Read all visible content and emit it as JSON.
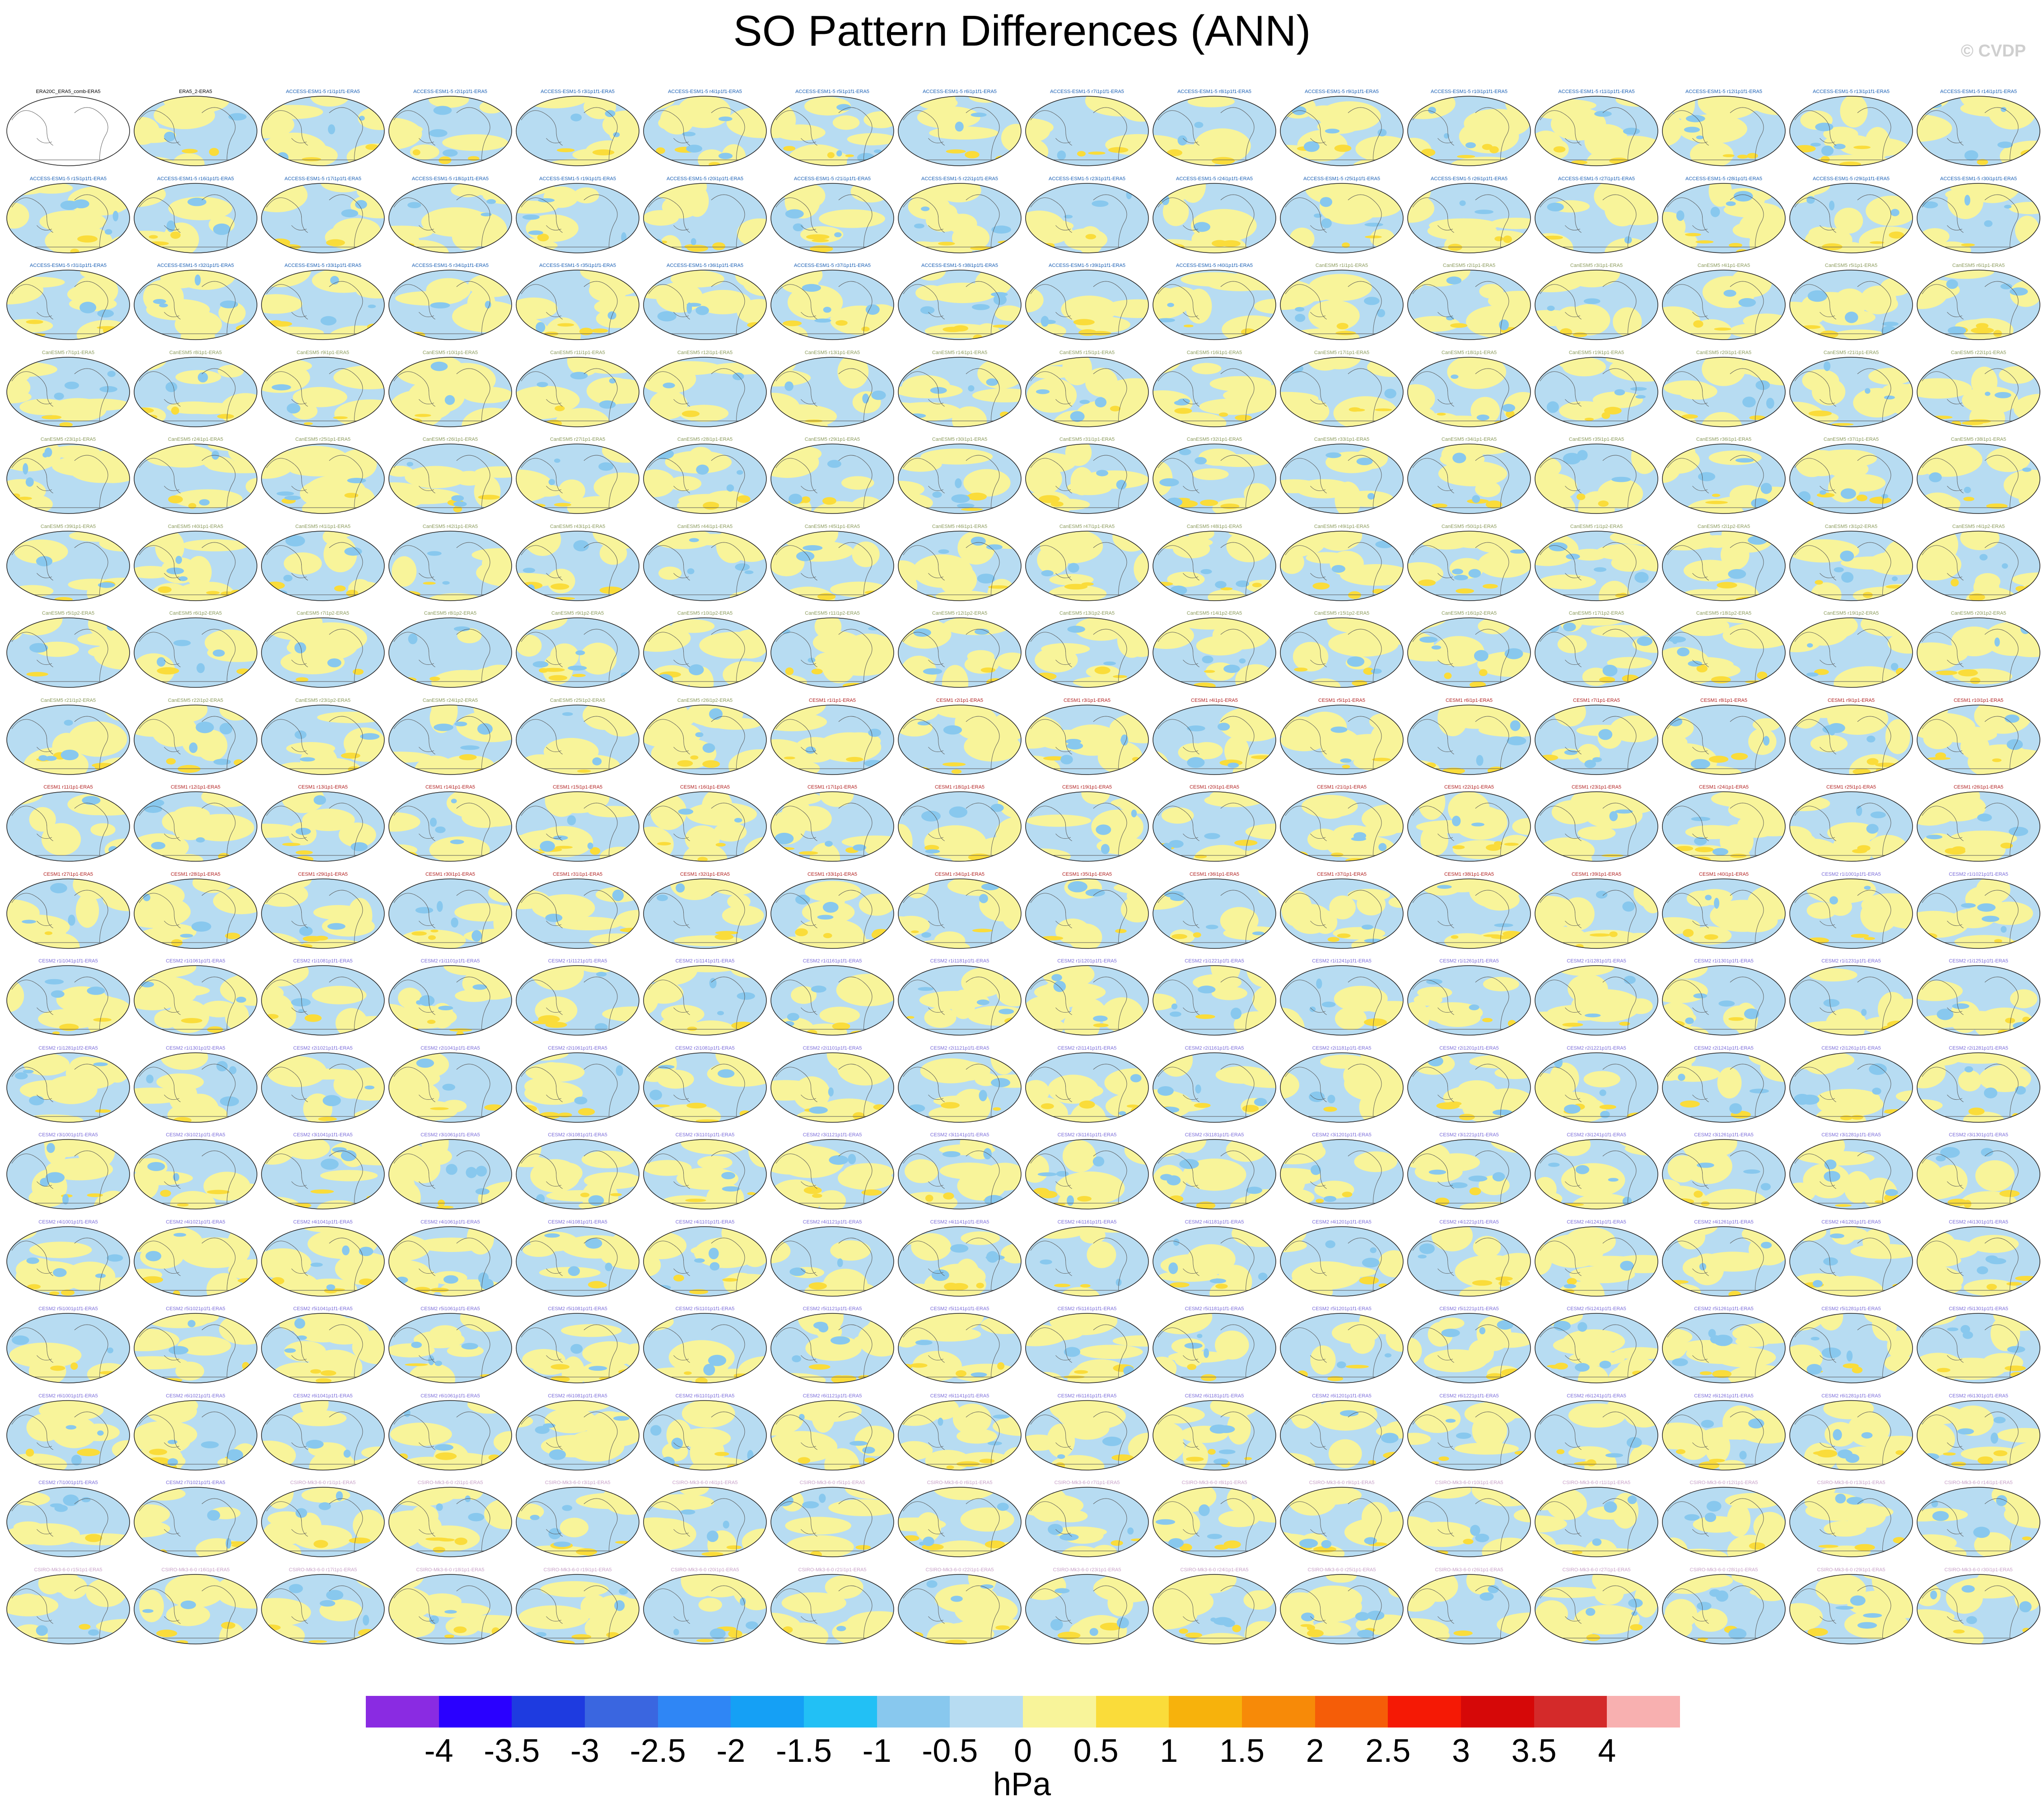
{
  "title": "SO Pattern Differences (ANN)",
  "credit": "© CVDP",
  "units": "hPa",
  "chart_data": {
    "type": "heatmap",
    "title": "SO Pattern Differences (ANN)",
    "panel_rows": 18,
    "panel_cols": 16,
    "first_panel_label": "ERA20C_ERA5_comb-ERA5",
    "colorbar": {
      "units": "hPa",
      "tick_labels": [
        "-4",
        "-3.5",
        "-3",
        "-2.5",
        "-2",
        "-1.5",
        "-1",
        "-0.5",
        "0",
        "0.5",
        "1",
        "1.5",
        "2",
        "2.5",
        "3",
        "3.5",
        "4"
      ],
      "colors": [
        "#8a2be2",
        "#2a00ff",
        "#1e3be0",
        "#3a66e0",
        "#2f86f5",
        "#15a0f5",
        "#22c0f5",
        "#88c8ee",
        "#b7dcf2",
        "#f8f49a",
        "#fadc3a",
        "#f7b20c",
        "#f78a08",
        "#f55d08",
        "#f51905",
        "#d60808",
        "#d42a2a",
        "#f8b0b0"
      ]
    },
    "panel_labels": [
      "ERA20C_ERA5_comb-ERA5",
      "ERA5_2-ERA5",
      "ACCESS-ESM1-5 r1i1p1f1-ERA5",
      "ACCESS-ESM1-5 r2i1p1f1-ERA5",
      "ACCESS-ESM1-5 r3i1p1f1-ERA5",
      "ACCESS-ESM1-5 r4i1p1f1-ERA5",
      "ACCESS-ESM1-5 r5i1p1f1-ERA5",
      "ACCESS-ESM1-5 r6i1p1f1-ERA5",
      "ACCESS-ESM1-5 r7i1p1f1-ERA5",
      "ACCESS-ESM1-5 r8i1p1f1-ERA5",
      "ACCESS-ESM1-5 r9i1p1f1-ERA5",
      "ACCESS-ESM1-5 r10i1p1f1-ERA5",
      "ACCESS-ESM1-5 r11i1p1f1-ERA5",
      "ACCESS-ESM1-5 r12i1p1f1-ERA5",
      "ACCESS-ESM1-5 r13i1p1f1-ERA5",
      "ACCESS-ESM1-5 r14i1p1f1-ERA5",
      "ACCESS-ESM1-5 r15i1p1f1-ERA5",
      "ACCESS-ESM1-5 r16i1p1f1-ERA5",
      "ACCESS-ESM1-5 r17i1p1f1-ERA5",
      "ACCESS-ESM1-5 r18i1p1f1-ERA5",
      "ACCESS-ESM1-5 r19i1p1f1-ERA5",
      "ACCESS-ESM1-5 r20i1p1f1-ERA5",
      "ACCESS-ESM1-5 r21i1p1f1-ERA5",
      "ACCESS-ESM1-5 r22i1p1f1-ERA5",
      "ACCESS-ESM1-5 r23i1p1f1-ERA5",
      "ACCESS-ESM1-5 r24i1p1f1-ERA5",
      "ACCESS-ESM1-5 r25i1p1f1-ERA5",
      "ACCESS-ESM1-5 r26i1p1f1-ERA5",
      "ACCESS-ESM1-5 r27i1p1f1-ERA5",
      "ACCESS-ESM1-5 r28i1p1f1-ERA5",
      "ACCESS-ESM1-5 r29i1p1f1-ERA5",
      "ACCESS-ESM1-5 r30i1p1f1-ERA5",
      "ACCESS-ESM1-5 r31i1p1f1-ERA5",
      "ACCESS-ESM1-5 r32i1p1f1-ERA5",
      "ACCESS-ESM1-5 r33i1p1f1-ERA5",
      "ACCESS-ESM1-5 r34i1p1f1-ERA5",
      "ACCESS-ESM1-5 r35i1p1f1-ERA5",
      "ACCESS-ESM1-5 r36i1p1f1-ERA5",
      "ACCESS-ESM1-5 r37i1p1f1-ERA5",
      "ACCESS-ESM1-5 r38i1p1f1-ERA5",
      "ACCESS-ESM1-5 r39i1p1f1-ERA5",
      "ACCESS-ESM1-5 r40i1p1f1-ERA5",
      "CanESM5 r1i1p1-ERA5",
      "CanESM5 r2i1p1-ERA5",
      "CanESM5 r3i1p1-ERA5",
      "CanESM5 r4i1p1-ERA5",
      "CanESM5 r5i1p1-ERA5",
      "CanESM5 r6i1p1-ERA5",
      "CanESM5 r7i1p1-ERA5",
      "CanESM5 r8i1p1-ERA5",
      "CanESM5 r9i1p1-ERA5",
      "CanESM5 r10i1p1-ERA5",
      "CanESM5 r11i1p1-ERA5",
      "CanESM5 r12i1p1-ERA5",
      "CanESM5 r13i1p1-ERA5",
      "CanESM5 r14i1p1-ERA5",
      "CanESM5 r15i1p1-ERA5",
      "CanESM5 r16i1p1-ERA5",
      "CanESM5 r17i1p1-ERA5",
      "CanESM5 r18i1p1-ERA5",
      "CanESM5 r19i1p1-ERA5",
      "CanESM5 r20i1p1-ERA5",
      "CanESM5 r21i1p1-ERA5",
      "CanESM5 r22i1p1-ERA5",
      "CanESM5 r23i1p1-ERA5",
      "CanESM5 r24i1p1-ERA5",
      "CanESM5 r25i1p1-ERA5",
      "CanESM5 r26i1p1-ERA5",
      "CanESM5 r27i1p1-ERA5",
      "CanESM5 r28i1p1-ERA5",
      "CanESM5 r29i1p1-ERA5",
      "CanESM5 r30i1p1-ERA5",
      "CanESM5 r31i1p1-ERA5",
      "CanESM5 r32i1p1-ERA5",
      "CanESM5 r33i1p1-ERA5",
      "CanESM5 r34i1p1-ERA5",
      "CanESM5 r35i1p1-ERA5",
      "CanESM5 r36i1p1-ERA5",
      "CanESM5 r37i1p1-ERA5",
      "CanESM5 r38i1p1-ERA5",
      "CanESM5 r39i1p1-ERA5",
      "CanESM5 r40i1p1-ERA5",
      "CanESM5 r41i1p1-ERA5",
      "CanESM5 r42i1p1-ERA5",
      "CanESM5 r43i1p1-ERA5",
      "CanESM5 r44i1p1-ERA5",
      "CanESM5 r45i1p1-ERA5",
      "CanESM5 r46i1p1-ERA5",
      "CanESM5 r47i1p1-ERA5",
      "CanESM5 r48i1p1-ERA5",
      "CanESM5 r49i1p1-ERA5",
      "CanESM5 r50i1p1-ERA5",
      "CanESM5 r1i1p2-ERA5",
      "CanESM5 r2i1p2-ERA5",
      "CanESM5 r3i1p2-ERA5",
      "CanESM5 r4i1p2-ERA5",
      "CanESM5 r5i1p2-ERA5",
      "CanESM5 r6i1p2-ERA5",
      "CanESM5 r7i1p2-ERA5",
      "CanESM5 r8i1p2-ERA5",
      "CanESM5 r9i1p2-ERA5",
      "CanESM5 r10i1p2-ERA5",
      "CanESM5 r11i1p2-ERA5",
      "CanESM5 r12i1p2-ERA5",
      "CanESM5 r13i1p2-ERA5",
      "CanESM5 r14i1p2-ERA5",
      "CanESM5 r15i1p2-ERA5",
      "CanESM5 r16i1p2-ERA5",
      "CanESM5 r17i1p2-ERA5",
      "CanESM5 r18i1p2-ERA5",
      "CanESM5 r19i1p2-ERA5",
      "CanESM5 r20i1p2-ERA5",
      "CanESM5 r21i1p2-ERA5",
      "CanESM5 r22i1p2-ERA5",
      "CanESM5 r23i1p2-ERA5",
      "CanESM5 r24i1p2-ERA5",
      "CanESM5 r25i1p2-ERA5",
      "CanESM5 r26i1p2-ERA5",
      "CESM1 r1i1p1-ERA5",
      "CESM1 r2i1p1-ERA5",
      "CESM1 r3i1p1-ERA5",
      "CESM1 r4i1p1-ERA5",
      "CESM1 r5i1p1-ERA5",
      "CESM1 r6i1p1-ERA5",
      "CESM1 r7i1p1-ERA5",
      "CESM1 r8i1p1-ERA5",
      "CESM1 r9i1p1-ERA5",
      "CESM1 r10i1p1-ERA5",
      "CESM1 r11i1p1-ERA5",
      "CESM1 r12i1p1-ERA5",
      "CESM1 r13i1p1-ERA5",
      "CESM1 r14i1p1-ERA5",
      "CESM1 r15i1p1-ERA5",
      "CESM1 r16i1p1-ERA5",
      "CESM1 r17i1p1-ERA5",
      "CESM1 r18i1p1-ERA5",
      "CESM1 r19i1p1-ERA5",
      "CESM1 r20i1p1-ERA5",
      "CESM1 r21i1p1-ERA5",
      "CESM1 r22i1p1-ERA5",
      "CESM1 r23i1p1-ERA5",
      "CESM1 r24i1p1-ERA5",
      "CESM1 r25i1p1-ERA5",
      "CESM1 r26i1p1-ERA5",
      "CESM1 r27i1p1-ERA5",
      "CESM1 r28i1p1-ERA5",
      "CESM1 r29i1p1-ERA5",
      "CESM1 r30i1p1-ERA5",
      "CESM1 r31i1p1-ERA5",
      "CESM1 r32i1p1-ERA5",
      "CESM1 r33i1p1-ERA5",
      "CESM1 r34i1p1-ERA5",
      "CESM1 r35i1p1-ERA5",
      "CESM1 r36i1p1-ERA5",
      "CESM1 r37i1p1-ERA5",
      "CESM1 r38i1p1-ERA5",
      "CESM1 r39i1p1-ERA5",
      "CESM1 r40i1p1-ERA5",
      "CESM2 r1i1001p1f1-ERA5",
      "CESM2 r1i1021p1f1-ERA5",
      "CESM2 r1i1041p1f1-ERA5",
      "CESM2 r1i1061p1f1-ERA5",
      "CESM2 r1i1081p1f1-ERA5",
      "CESM2 r1i1101p1f1-ERA5",
      "CESM2 r1i1121p1f1-ERA5",
      "CESM2 r1i1141p1f1-ERA5",
      "CESM2 r1i1161p1f1-ERA5",
      "CESM2 r1i1181p1f1-ERA5",
      "CESM2 r1i1201p1f1-ERA5",
      "CESM2 r1i1221p1f1-ERA5",
      "CESM2 r1i1241p1f1-ERA5",
      "CESM2 r1i1261p1f1-ERA5",
      "CESM2 r1i1281p1f1-ERA5",
      "CESM2 r1i1301p1f1-ERA5",
      "CESM2 r1i1231p1f1-ERA5",
      "CESM2 r1i1251p1f1-ERA5",
      "CESM2 r1i1281p1f2-ERA5",
      "CESM2 r1i1301p1f2-ERA5",
      "CESM2 r2i1021p1f1-ERA5",
      "CESM2 r2i1041p1f1-ERA5",
      "CESM2 r2i1061p1f1-ERA5",
      "CESM2 r2i1081p1f1-ERA5",
      "CESM2 r2i1101p1f1-ERA5",
      "CESM2 r2i1121p1f1-ERA5",
      "CESM2 r2i1141p1f1-ERA5",
      "CESM2 r2i1161p1f1-ERA5",
      "CESM2 r2i1181p1f1-ERA5",
      "CESM2 r2i1201p1f1-ERA5",
      "CESM2 r2i1221p1f1-ERA5",
      "CESM2 r2i1241p1f1-ERA5",
      "CESM2 r2i1261p1f1-ERA5",
      "CESM2 r2i1281p1f1-ERA5",
      "CESM2 r3i1001p1f1-ERA5",
      "CESM2 r3i1021p1f1-ERA5",
      "CESM2 r3i1041p1f1-ERA5",
      "CESM2 r3i1061p1f1-ERA5",
      "CESM2 r3i1081p1f1-ERA5",
      "CESM2 r3i1101p1f1-ERA5",
      "CESM2 r3i1121p1f1-ERA5",
      "CESM2 r3i1141p1f1-ERA5",
      "CESM2 r3i1161p1f1-ERA5",
      "CESM2 r3i1181p1f1-ERA5",
      "CESM2 r3i1201p1f1-ERA5",
      "CESM2 r3i1221p1f1-ERA5",
      "CESM2 r3i1241p1f1-ERA5",
      "CESM2 r3i1261p1f1-ERA5",
      "CESM2 r3i1281p1f1-ERA5",
      "CESM2 r3i1301p1f1-ERA5",
      "CESM2 r4i1001p1f1-ERA5",
      "CESM2 r4i1021p1f1-ERA5",
      "CESM2 r4i1041p1f1-ERA5",
      "CESM2 r4i1061p1f1-ERA5",
      "CESM2 r4i1081p1f1-ERA5",
      "CESM2 r4i1101p1f1-ERA5",
      "CESM2 r4i1121p1f1-ERA5",
      "CESM2 r4i1141p1f1-ERA5",
      "CESM2 r4i1161p1f1-ERA5",
      "CESM2 r4i1181p1f1-ERA5",
      "CESM2 r4i1201p1f1-ERA5",
      "CESM2 r4i1221p1f1-ERA5",
      "CESM2 r4i1241p1f1-ERA5",
      "CESM2 r4i1261p1f1-ERA5",
      "CESM2 r4i1281p1f1-ERA5",
      "CESM2 r4i1301p1f1-ERA5",
      "CESM2 r5i1001p1f1-ERA5",
      "CESM2 r5i1021p1f1-ERA5",
      "CESM2 r5i1041p1f1-ERA5",
      "CESM2 r5i1061p1f1-ERA5",
      "CESM2 r5i1081p1f1-ERA5",
      "CESM2 r5i1101p1f1-ERA5",
      "CESM2 r5i1121p1f1-ERA5",
      "CESM2 r5i1141p1f1-ERA5",
      "CESM2 r5i1161p1f1-ERA5",
      "CESM2 r5i1181p1f1-ERA5",
      "CESM2 r5i1201p1f1-ERA5",
      "CESM2 r5i1221p1f1-ERA5",
      "CESM2 r5i1241p1f1-ERA5",
      "CESM2 r5i1261p1f1-ERA5",
      "CESM2 r5i1281p1f1-ERA5",
      "CESM2 r5i1301p1f1-ERA5",
      "CESM2 r6i1001p1f1-ERA5",
      "CESM2 r6i1021p1f1-ERA5",
      "CESM2 r6i1041p1f1-ERA5",
      "CESM2 r6i1061p1f1-ERA5",
      "CESM2 r6i1081p1f1-ERA5",
      "CESM2 r6i1101p1f1-ERA5",
      "CESM2 r6i1121p1f1-ERA5",
      "CESM2 r6i1141p1f1-ERA5",
      "CESM2 r6i1161p1f1-ERA5",
      "CESM2 r6i1181p1f1-ERA5",
      "CESM2 r6i1201p1f1-ERA5",
      "CESM2 r6i1221p1f1-ERA5",
      "CESM2 r6i1241p1f1-ERA5",
      "CESM2 r6i1261p1f1-ERA5",
      "CESM2 r6i1281p1f1-ERA5",
      "CESM2 r6i1301p1f1-ERA5",
      "CESM2 r7i1001p1f1-ERA5",
      "CESM2 r7i1021p1f1-ERA5",
      "CSIRO-Mk3-6-0 r1i1p1-ERA5",
      "CSIRO-Mk3-6-0 r2i1p1-ERA5",
      "CSIRO-Mk3-6-0 r3i1p1-ERA5",
      "CSIRO-Mk3-6-0 r4i1p1-ERA5",
      "CSIRO-Mk3-6-0 r5i1p1-ERA5",
      "CSIRO-Mk3-6-0 r6i1p1-ERA5",
      "CSIRO-Mk3-6-0 r7i1p1-ERA5",
      "CSIRO-Mk3-6-0 r8i1p1-ERA5",
      "CSIRO-Mk3-6-0 r9i1p1-ERA5",
      "CSIRO-Mk3-6-0 r10i1p1-ERA5",
      "CSIRO-Mk3-6-0 r11i1p1-ERA5",
      "CSIRO-Mk3-6-0 r12i1p1-ERA5",
      "CSIRO-Mk3-6-0 r13i1p1-ERA5",
      "CSIRO-Mk3-6-0 r14i1p1-ERA5",
      "CSIRO-Mk3-6-0 r15i1p1-ERA5",
      "CSIRO-Mk3-6-0 r16i1p1-ERA5",
      "CSIRO-Mk3-6-0 r17i1p1-ERA5",
      "CSIRO-Mk3-6-0 r18i1p1-ERA5",
      "CSIRO-Mk3-6-0 r19i1p1-ERA5",
      "CSIRO-Mk3-6-0 r20i1p1-ERA5",
      "CSIRO-Mk3-6-0 r21i1p1-ERA5",
      "CSIRO-Mk3-6-0 r22i1p1-ERA5",
      "CSIRO-Mk3-6-0 r23i1p1-ERA5",
      "CSIRO-Mk3-6-0 r24i1p1-ERA5",
      "CSIRO-Mk3-6-0 r25i1p1-ERA5",
      "CSIRO-Mk3-6-0 r26i1p1-ERA5",
      "CSIRO-Mk3-6-0 r27i1p1-ERA5",
      "CSIRO-Mk3-6-0 r28i1p1-ERA5",
      "CSIRO-Mk3-6-0 r29i1p1-ERA5",
      "CSIRO-Mk3-6-0 r30i1p1-ERA5"
    ]
  }
}
